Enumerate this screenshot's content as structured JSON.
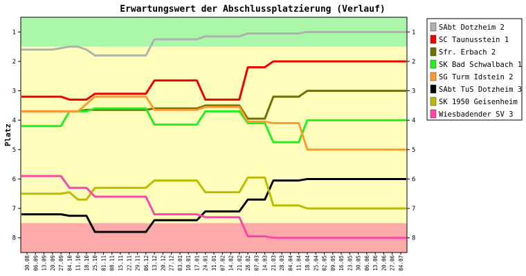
{
  "chart_data": {
    "type": "line",
    "title": "Erwartungswert der Abschlussplatzierung (Verlauf)",
    "ylabel": "Platz",
    "xlabel": "",
    "ylim": [
      0.5,
      8.5
    ],
    "y_inverted": true,
    "y_ticks": [
      "1",
      "2",
      "3",
      "4",
      "5",
      "6",
      "7",
      "8"
    ],
    "legend_position": "right",
    "bands": [
      {
        "from": 0.5,
        "to": 1.5,
        "color": "#aaf7aa"
      },
      {
        "from": 1.5,
        "to": 7.5,
        "color": "#ffffbb"
      },
      {
        "from": 7.5,
        "to": 8.5,
        "color": "#ffaaaa"
      }
    ],
    "x": [
      "30.08",
      "06.09",
      "13.09",
      "20.09",
      "27.09",
      "04.10",
      "11.10",
      "18.10",
      "25.10",
      "01.11",
      "08.11",
      "15.11",
      "22.11",
      "29.11",
      "06.12",
      "13.12",
      "20.12",
      "27.12",
      "03.01",
      "10.01",
      "17.01",
      "24.01",
      "31.01",
      "07.02",
      "14.02",
      "21.02",
      "28.02",
      "07.03",
      "14.03",
      "21.03",
      "28.03",
      "04.04",
      "11.04",
      "18.04",
      "25.04",
      "02.05",
      "09.05",
      "16.05",
      "23.05",
      "30.05",
      "06.06",
      "13.06",
      "20.06",
      "27.06",
      "04.07"
    ],
    "series": [
      {
        "name": "SAbt Dotzheim 2",
        "color": "#b0b0b0",
        "values": [
          1.6,
          1.6,
          1.6,
          1.6,
          1.55,
          1.5,
          1.5,
          1.6,
          1.8,
          1.8,
          1.8,
          1.8,
          1.8,
          1.8,
          1.8,
          1.25,
          1.25,
          1.25,
          1.25,
          1.25,
          1.25,
          1.15,
          1.15,
          1.15,
          1.15,
          1.15,
          1.05,
          1.05,
          1.05,
          1.05,
          1.05,
          1.05,
          1.05,
          1.0,
          1.0,
          1.0,
          1.0,
          1.0,
          1.0,
          1.0,
          1.0,
          1.0,
          1.0,
          1.0,
          1.0
        ]
      },
      {
        "name": "SC Taunusstein 1",
        "color": "#ee0000",
        "values": [
          3.2,
          3.2,
          3.2,
          3.2,
          3.2,
          3.3,
          3.3,
          3.3,
          3.1,
          3.1,
          3.1,
          3.1,
          3.1,
          3.1,
          3.1,
          2.65,
          2.65,
          2.65,
          2.65,
          2.65,
          2.65,
          3.3,
          3.3,
          3.3,
          3.3,
          3.3,
          2.2,
          2.2,
          2.2,
          2.0,
          2.0,
          2.0,
          2.0,
          2.0,
          2.0,
          2.0,
          2.0,
          2.0,
          2.0,
          2.0,
          2.0,
          2.0,
          2.0,
          2.0,
          2.0
        ]
      },
      {
        "name": "Sfr. Erbach 2",
        "color": "#707000",
        "values": [
          3.7,
          3.7,
          3.7,
          3.7,
          3.7,
          3.7,
          3.7,
          3.65,
          3.65,
          3.65,
          3.65,
          3.65,
          3.65,
          3.65,
          3.65,
          3.6,
          3.6,
          3.6,
          3.6,
          3.6,
          3.6,
          3.5,
          3.5,
          3.5,
          3.5,
          3.5,
          3.95,
          3.95,
          3.95,
          3.2,
          3.2,
          3.2,
          3.2,
          3.0,
          3.0,
          3.0,
          3.0,
          3.0,
          3.0,
          3.0,
          3.0,
          3.0,
          3.0,
          3.0,
          3.0
        ]
      },
      {
        "name": "SK Bad Schwalbach 1",
        "color": "#22ee22",
        "values": [
          4.2,
          4.2,
          4.2,
          4.2,
          4.2,
          3.7,
          3.7,
          3.7,
          3.6,
          3.6,
          3.6,
          3.6,
          3.6,
          3.6,
          3.6,
          4.15,
          4.15,
          4.15,
          4.15,
          4.15,
          4.15,
          3.7,
          3.7,
          3.7,
          3.7,
          3.7,
          4.1,
          4.1,
          4.1,
          4.75,
          4.75,
          4.75,
          4.75,
          4.0,
          4.0,
          4.0,
          4.0,
          4.0,
          4.0,
          4.0,
          4.0,
          4.0,
          4.0,
          4.0,
          4.0
        ]
      },
      {
        "name": "SG Turm Idstein 2",
        "color": "#ff9930",
        "values": [
          3.7,
          3.7,
          3.7,
          3.7,
          3.7,
          3.7,
          3.7,
          3.45,
          3.2,
          3.2,
          3.2,
          3.2,
          3.2,
          3.2,
          3.2,
          3.65,
          3.65,
          3.65,
          3.65,
          3.65,
          3.65,
          3.55,
          3.55,
          3.55,
          3.55,
          3.55,
          4.05,
          4.05,
          4.05,
          4.1,
          4.1,
          4.1,
          4.1,
          5.0,
          5.0,
          5.0,
          5.0,
          5.0,
          5.0,
          5.0,
          5.0,
          5.0,
          5.0,
          5.0,
          5.0
        ]
      },
      {
        "name": "SAbt TuS Dotzheim 3",
        "color": "#000000",
        "values": [
          7.2,
          7.2,
          7.2,
          7.2,
          7.2,
          7.25,
          7.25,
          7.25,
          7.8,
          7.8,
          7.8,
          7.8,
          7.8,
          7.8,
          7.8,
          7.4,
          7.4,
          7.4,
          7.4,
          7.4,
          7.4,
          7.1,
          7.1,
          7.1,
          7.1,
          7.1,
          6.7,
          6.7,
          6.7,
          6.05,
          6.05,
          6.05,
          6.05,
          6.0,
          6.0,
          6.0,
          6.0,
          6.0,
          6.0,
          6.0,
          6.0,
          6.0,
          6.0,
          6.0,
          6.0
        ]
      },
      {
        "name": "SK 1950 Geisenheim",
        "color": "#bbbb00",
        "values": [
          6.5,
          6.5,
          6.5,
          6.5,
          6.5,
          6.45,
          6.7,
          6.7,
          6.3,
          6.3,
          6.3,
          6.3,
          6.3,
          6.3,
          6.3,
          6.05,
          6.05,
          6.05,
          6.05,
          6.05,
          6.05,
          6.45,
          6.45,
          6.45,
          6.45,
          6.45,
          5.95,
          5.95,
          5.95,
          6.9,
          6.9,
          6.9,
          6.9,
          7.0,
          7.0,
          7.0,
          7.0,
          7.0,
          7.0,
          7.0,
          7.0,
          7.0,
          7.0,
          7.0,
          7.0
        ]
      },
      {
        "name": "Wiesbadender SV 3",
        "color": "#ff44aa",
        "values": [
          5.9,
          5.9,
          5.9,
          5.9,
          5.9,
          6.3,
          6.3,
          6.3,
          6.6,
          6.6,
          6.6,
          6.6,
          6.6,
          6.6,
          6.6,
          7.2,
          7.2,
          7.2,
          7.2,
          7.2,
          7.2,
          7.3,
          7.3,
          7.3,
          7.3,
          7.3,
          7.95,
          7.95,
          7.95,
          8.0,
          8.0,
          8.0,
          8.0,
          8.0,
          8.0,
          8.0,
          8.0,
          8.0,
          8.0,
          8.0,
          8.0,
          8.0,
          8.0,
          8.0,
          8.0
        ]
      }
    ]
  }
}
